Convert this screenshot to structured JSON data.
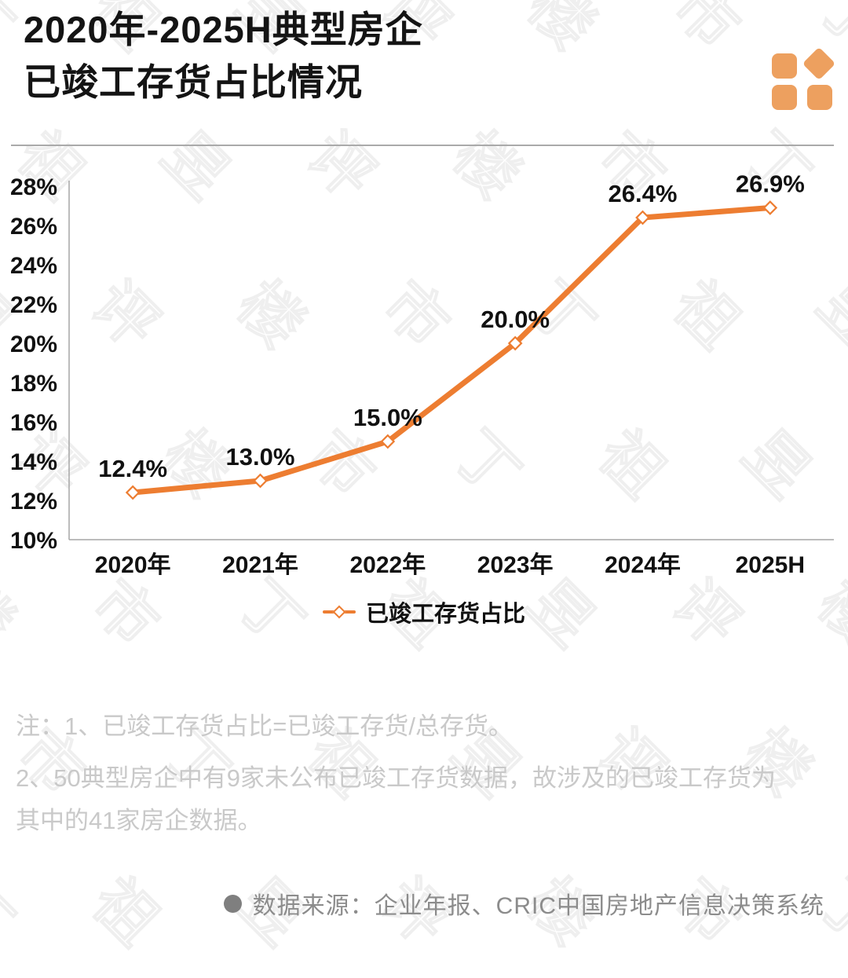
{
  "header": {
    "title_line1": "2020年-2025H典型房企",
    "title_line2": "已竣工存货占比情况"
  },
  "brand": {
    "logo_color": "#EDA05F"
  },
  "chart_data": {
    "type": "line",
    "title": "2020年-2025H典型房企已竣工存货占比情况",
    "categories": [
      "2020年",
      "2021年",
      "2022年",
      "2023年",
      "2024年",
      "2025H"
    ],
    "series": [
      {
        "name": "已竣工存货占比",
        "values": [
          12.4,
          13.0,
          15.0,
          20.0,
          26.4,
          26.9
        ]
      }
    ],
    "value_labels": [
      "12.4%",
      "13.0%",
      "15.0%",
      "20.0%",
      "26.4%",
      "26.9%"
    ],
    "ylim": [
      10,
      28
    ],
    "y_tick_step": 2,
    "y_tick_suffix": "%",
    "grid": false,
    "legend_position": "bottom",
    "line_color": "#ED7D31",
    "marker": "diamond-open",
    "axis_color": "#a6a6a6",
    "label_color": "#111111"
  },
  "legend": {
    "label": "已竣工存货占比"
  },
  "notes": {
    "line1": "注：1、已竣工存货占比=已竣工存货/总存货。",
    "line2": "2、50典型房企中有9家未公布已竣工存货数据，故涉及的已竣工存货为",
    "line3": "其中的41家房企数据。"
  },
  "source": {
    "text": "数据来源：企业年报、CRIC中国房地产信息决策系统"
  },
  "watermark": {
    "text": "丁祖昱评楼市"
  }
}
